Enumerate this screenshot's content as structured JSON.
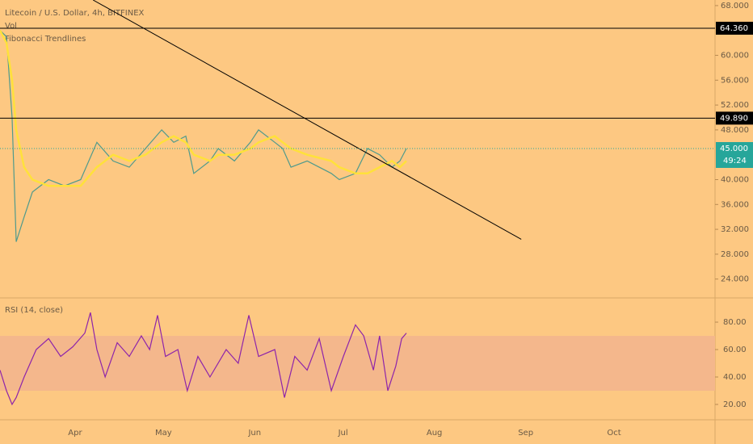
{
  "chart_data": {
    "type": "line",
    "title": "Litecoin / U.S. Dollar, 4h, BITFINEX",
    "indicators": [
      "Vol",
      "Fibonacci Trendlines"
    ],
    "rsi_title": "RSI (14, close)",
    "xlim": [
      65.5,
      308.3
    ],
    "xticks": [
      {
        "value": 91,
        "label": "Apr"
      },
      {
        "value": 121,
        "label": "May"
      },
      {
        "value": 152,
        "label": "Jun"
      },
      {
        "value": 182,
        "label": "Jul"
      },
      {
        "value": 213,
        "label": "Aug"
      },
      {
        "value": 244,
        "label": "Sep"
      },
      {
        "value": 274,
        "label": "Oct"
      }
    ],
    "ylim": [
      21.1,
      68.9
    ],
    "yticks": [
      {
        "value": 68,
        "label": "68.000"
      },
      {
        "value": 60,
        "label": "60.000"
      },
      {
        "value": 56,
        "label": "56.000"
      },
      {
        "value": 52,
        "label": "52.000"
      },
      {
        "value": 48,
        "label": "48.000"
      },
      {
        "value": 40,
        "label": "40.000"
      },
      {
        "value": 36,
        "label": "36.000"
      },
      {
        "value": 32,
        "label": "32.000"
      },
      {
        "value": 28,
        "label": "28.000"
      },
      {
        "value": 24,
        "label": "24.000"
      }
    ],
    "x": [
      65.5,
      67.7,
      69.6,
      71,
      73.7,
      76.5,
      82,
      87.4,
      92.9,
      98.4,
      103.9,
      109.4,
      114.9,
      120.4,
      124.5,
      128.6,
      131.3,
      136.8,
      139.6,
      145.1,
      150.5,
      153.3,
      158.8,
      161.5,
      164.3,
      169.8,
      178,
      180.7,
      186.2,
      190.3,
      194.4,
      198.6,
      201.3,
      203.5
    ],
    "series": [
      {
        "color": "#4f9a8c",
        "values": [
          64,
          63,
          50,
          30,
          34,
          38,
          40,
          39,
          40,
          46,
          43,
          42,
          45,
          48,
          46,
          47,
          41,
          43,
          45,
          43,
          46,
          48,
          46,
          45,
          42,
          43,
          41,
          40,
          41,
          45,
          44,
          42,
          43,
          45
        ]
      },
      {
        "color": "#ffe13b",
        "values": [
          64,
          62,
          56,
          48,
          42,
          40,
          39,
          39,
          39,
          42,
          44,
          43,
          44,
          46,
          47,
          46,
          44,
          43,
          44,
          44,
          45,
          46,
          47,
          46,
          45,
          44,
          43,
          42,
          41,
          41,
          42,
          43,
          42,
          43
        ]
      }
    ],
    "trendline": {
      "x": [
        97.1,
        242.5
      ],
      "values": [
        68.9,
        30.4
      ],
      "color": "#000000"
    },
    "price_lines": [
      {
        "value": 64.36,
        "label": "64.360"
      },
      {
        "value": 49.89,
        "label": "49.890"
      }
    ],
    "last_price": {
      "value": 45,
      "label": "45.000",
      "countdown": "49:24",
      "color": "#26a69a"
    },
    "rsi": {
      "color": "#8e24aa",
      "ylim": [
        8.8,
        97.1
      ],
      "band": [
        30,
        70
      ],
      "yticks": [
        {
          "value": 80,
          "label": "80.00"
        },
        {
          "value": 60,
          "label": "60.00"
        },
        {
          "value": 40,
          "label": "40.00"
        },
        {
          "value": 20,
          "label": "20.00"
        }
      ],
      "x": [
        65.5,
        67.7,
        69.6,
        71,
        73.7,
        77.8,
        82,
        86.1,
        90.2,
        94.3,
        96.2,
        98.4,
        101.2,
        105.3,
        109.4,
        113.5,
        116.3,
        119,
        121.7,
        125.9,
        129.1,
        132.7,
        136.8,
        142.3,
        146.4,
        150,
        153.3,
        158.8,
        162.1,
        165.6,
        169.8,
        173.9,
        178,
        182.1,
        186.2,
        189,
        192.3,
        194.4,
        197.2,
        199.9,
        201.9,
        203.5
      ],
      "values": [
        45,
        30,
        20,
        25,
        40,
        60,
        68,
        55,
        62,
        72,
        87,
        60,
        40,
        65,
        55,
        70,
        60,
        85,
        55,
        60,
        30,
        55,
        40,
        60,
        50,
        85,
        55,
        60,
        25,
        55,
        45,
        68,
        30,
        55,
        78,
        70,
        45,
        70,
        30,
        48,
        68,
        72
      ]
    }
  }
}
